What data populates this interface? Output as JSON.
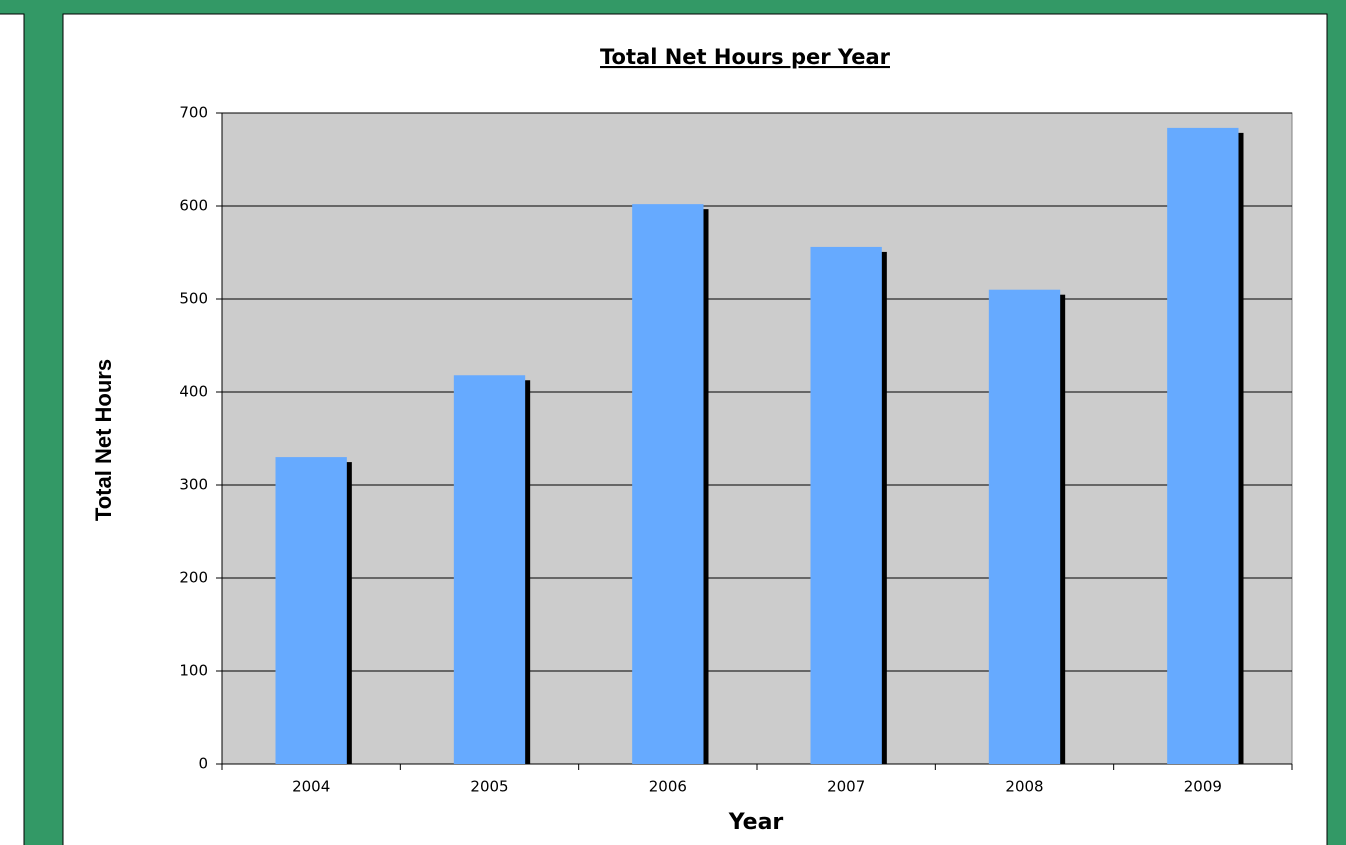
{
  "chart_data": {
    "type": "bar",
    "title": "Total Net Hours per Year",
    "x_label": "Year",
    "y_label": "Total Net Hours",
    "categories": [
      "2004",
      "2005",
      "2006",
      "2007",
      "2008",
      "2009"
    ],
    "values": [
      330,
      418,
      602,
      556,
      510,
      684
    ],
    "color": "#66aaff",
    "ylim": [
      0,
      700
    ],
    "yticks": [
      0,
      100,
      200,
      300,
      400,
      500,
      600,
      700
    ],
    "grid": true
  }
}
